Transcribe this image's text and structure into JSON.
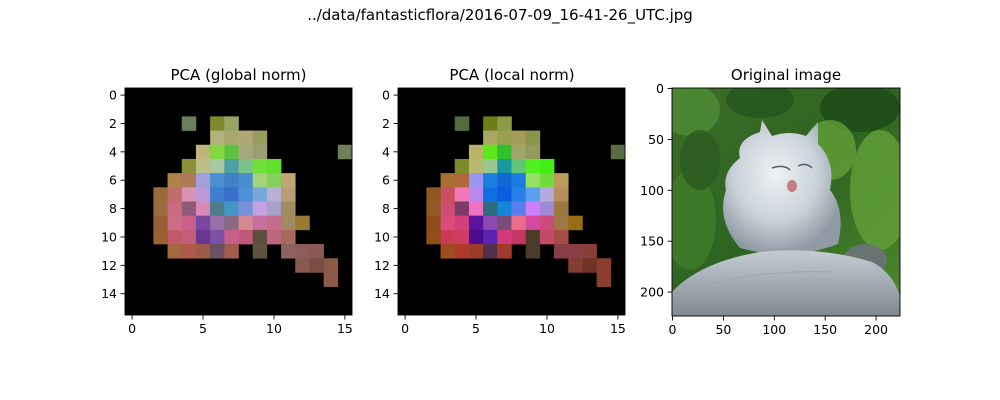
{
  "figure": {
    "suptitle": "../data/fantasticflora/2016-07-09_16-41-26_UTC.jpg"
  },
  "chart_data": [
    {
      "type": "heatmap",
      "title": "PCA (global norm)",
      "grid": false,
      "background": "#000000",
      "grid_size": [
        16,
        16
      ],
      "xlim": [
        -0.5,
        15.5
      ],
      "ylim": [
        15.5,
        -0.5
      ],
      "xticks": [
        0,
        5,
        10,
        15
      ],
      "yticks": [
        0,
        2,
        4,
        6,
        8,
        10,
        12,
        14
      ],
      "cells": [
        [
          2,
          4,
          "#6a7f5e"
        ],
        [
          2,
          6,
          "#7f8a2c"
        ],
        [
          2,
          7,
          "#9aa462"
        ],
        [
          3,
          6,
          "#b4b17a"
        ],
        [
          3,
          7,
          "#a6a86c"
        ],
        [
          3,
          8,
          "#b0a874"
        ],
        [
          3,
          9,
          "#999c60"
        ],
        [
          4,
          5,
          "#bfb57c"
        ],
        [
          4,
          6,
          "#82d93e"
        ],
        [
          4,
          7,
          "#5fc23f"
        ],
        [
          4,
          8,
          "#a5a87a"
        ],
        [
          4,
          9,
          "#9e9c73"
        ],
        [
          4,
          15,
          "#6f7f5a"
        ],
        [
          5,
          4,
          "#8c923a"
        ],
        [
          5,
          5,
          "#bdbd8a"
        ],
        [
          5,
          6,
          "#a8c8a0"
        ],
        [
          5,
          7,
          "#4aa0a2"
        ],
        [
          5,
          8,
          "#7cc08a"
        ],
        [
          5,
          9,
          "#6fe03a"
        ],
        [
          5,
          10,
          "#62de2f"
        ],
        [
          6,
          3,
          "#ad8148"
        ],
        [
          6,
          4,
          "#ae7a5a"
        ],
        [
          6,
          5,
          "#9fa0dc"
        ],
        [
          6,
          6,
          "#4a8fd2"
        ],
        [
          6,
          7,
          "#447fc6"
        ],
        [
          6,
          8,
          "#4a8cd0"
        ],
        [
          6,
          9,
          "#a3d47b"
        ],
        [
          6,
          10,
          "#86d05c"
        ],
        [
          6,
          11,
          "#c0a674"
        ],
        [
          7,
          2,
          "#9a6a3a"
        ],
        [
          7,
          3,
          "#c16b6f"
        ],
        [
          7,
          4,
          "#d792b4"
        ],
        [
          7,
          5,
          "#bb98d8"
        ],
        [
          7,
          6,
          "#3c7fcc"
        ],
        [
          7,
          7,
          "#3a6fcb"
        ],
        [
          7,
          8,
          "#4f8fd4"
        ],
        [
          7,
          9,
          "#77a8dc"
        ],
        [
          7,
          10,
          "#b7b2d2"
        ],
        [
          7,
          11,
          "#b99d76"
        ],
        [
          8,
          2,
          "#9c6b3e"
        ],
        [
          8,
          3,
          "#c96a7e"
        ],
        [
          8,
          4,
          "#8f5a78"
        ],
        [
          8,
          5,
          "#d88ab4"
        ],
        [
          8,
          6,
          "#4e7c8a"
        ],
        [
          8,
          7,
          "#4596c8"
        ],
        [
          8,
          8,
          "#7890d8"
        ],
        [
          8,
          9,
          "#c2a0e2"
        ],
        [
          8,
          10,
          "#a7a0cb"
        ],
        [
          8,
          11,
          "#a08d5e"
        ],
        [
          9,
          2,
          "#955e36"
        ],
        [
          9,
          3,
          "#cd6d84"
        ],
        [
          9,
          4,
          "#cb608a"
        ],
        [
          9,
          5,
          "#7848a0"
        ],
        [
          9,
          6,
          "#9a70a8"
        ],
        [
          9,
          7,
          "#8a6a82"
        ],
        [
          9,
          8,
          "#d48a92"
        ],
        [
          9,
          9,
          "#c870a2"
        ],
        [
          9,
          10,
          "#c26e8a"
        ],
        [
          9,
          11,
          "#a58962"
        ],
        [
          9,
          12,
          "#9a7a30"
        ],
        [
          10,
          2,
          "#9a6232"
        ],
        [
          10,
          3,
          "#c25a6c"
        ],
        [
          10,
          4,
          "#c2607a"
        ],
        [
          10,
          5,
          "#6a3890"
        ],
        [
          10,
          6,
          "#7a52a6"
        ],
        [
          10,
          7,
          "#c76088"
        ],
        [
          10,
          8,
          "#c05a7a"
        ],
        [
          10,
          9,
          "#5e4e40"
        ],
        [
          10,
          10,
          "#bd6680"
        ],
        [
          10,
          11,
          "#a66a5e"
        ],
        [
          11,
          3,
          "#a26840"
        ],
        [
          11,
          4,
          "#b05a4a"
        ],
        [
          11,
          5,
          "#a05a4a"
        ],
        [
          11,
          6,
          "#6a5060"
        ],
        [
          11,
          7,
          "#a25a4a"
        ],
        [
          11,
          9,
          "#5e5240"
        ],
        [
          11,
          11,
          "#8e6060"
        ],
        [
          11,
          12,
          "#8e5c5c"
        ],
        [
          11,
          13,
          "#8c5a55"
        ],
        [
          12,
          12,
          "#8a5a50"
        ],
        [
          12,
          13,
          "#7a4e40"
        ],
        [
          12,
          14,
          "#8e5a48"
        ],
        [
          13,
          14,
          "#8e5a48"
        ]
      ]
    },
    {
      "type": "heatmap",
      "title": "PCA (local norm)",
      "grid": false,
      "background": "#000000",
      "grid_size": [
        16,
        16
      ],
      "xlim": [
        -0.5,
        15.5
      ],
      "ylim": [
        15.5,
        -0.5
      ],
      "xticks": [
        0,
        5,
        10,
        15
      ],
      "yticks": [
        0,
        2,
        4,
        6,
        8,
        10,
        12,
        14
      ],
      "cells": [
        [
          2,
          4,
          "#556b40"
        ],
        [
          2,
          6,
          "#6e7d18"
        ],
        [
          2,
          7,
          "#8a9a48"
        ],
        [
          3,
          6,
          "#a8a860"
        ],
        [
          3,
          7,
          "#98a050"
        ],
        [
          3,
          8,
          "#a49a5a"
        ],
        [
          3,
          9,
          "#8c9648"
        ],
        [
          4,
          5,
          "#b8b468"
        ],
        [
          4,
          6,
          "#5ee81c"
        ],
        [
          4,
          7,
          "#32c02a"
        ],
        [
          4,
          8,
          "#a0a66a"
        ],
        [
          4,
          9,
          "#96985e"
        ],
        [
          4,
          15,
          "#5a6c44"
        ],
        [
          5,
          4,
          "#7c8a28"
        ],
        [
          5,
          5,
          "#b8b872"
        ],
        [
          5,
          6,
          "#98c890"
        ],
        [
          5,
          7,
          "#1a98a0"
        ],
        [
          5,
          8,
          "#62c476"
        ],
        [
          5,
          9,
          "#52f020"
        ],
        [
          5,
          10,
          "#42ee14"
        ],
        [
          6,
          3,
          "#a8702c"
        ],
        [
          6,
          4,
          "#b0683c"
        ],
        [
          6,
          5,
          "#9a96ee"
        ],
        [
          6,
          6,
          "#1a80e0"
        ],
        [
          6,
          7,
          "#1068d6"
        ],
        [
          6,
          8,
          "#1a7ce0"
        ],
        [
          6,
          9,
          "#98e064"
        ],
        [
          6,
          10,
          "#70dc3c"
        ],
        [
          6,
          11,
          "#bc9a58"
        ],
        [
          7,
          2,
          "#905820"
        ],
        [
          7,
          3,
          "#c85060"
        ],
        [
          7,
          4,
          "#f278b8"
        ],
        [
          7,
          5,
          "#b888ee"
        ],
        [
          7,
          6,
          "#1070e0"
        ],
        [
          7,
          7,
          "#0a5ce0"
        ],
        [
          7,
          8,
          "#2a80e6"
        ],
        [
          7,
          9,
          "#5aa0f0"
        ],
        [
          7,
          10,
          "#b4aae0"
        ],
        [
          7,
          11,
          "#b88e5c"
        ],
        [
          8,
          2,
          "#925a24"
        ],
        [
          8,
          3,
          "#d04e70"
        ],
        [
          8,
          4,
          "#7e3a68"
        ],
        [
          8,
          5,
          "#ee70c0"
        ],
        [
          8,
          6,
          "#2a6c80"
        ],
        [
          8,
          7,
          "#1488d8"
        ],
        [
          8,
          8,
          "#5a7ef0"
        ],
        [
          8,
          9,
          "#d080f6"
        ],
        [
          8,
          10,
          "#a088d8"
        ],
        [
          8,
          11,
          "#98783c"
        ],
        [
          9,
          2,
          "#8c4c1c"
        ],
        [
          9,
          3,
          "#d84e78"
        ],
        [
          9,
          4,
          "#d43e7a"
        ],
        [
          9,
          5,
          "#5a14a0"
        ],
        [
          9,
          6,
          "#8a4cb0"
        ],
        [
          9,
          7,
          "#7c4c78"
        ],
        [
          9,
          8,
          "#e86e8a"
        ],
        [
          9,
          9,
          "#d44a9e"
        ],
        [
          9,
          10,
          "#cc4a7c"
        ],
        [
          9,
          11,
          "#a07846"
        ],
        [
          9,
          12,
          "#9a6c14"
        ],
        [
          10,
          2,
          "#904e18"
        ],
        [
          10,
          3,
          "#cc3a56"
        ],
        [
          10,
          4,
          "#cc3e64"
        ],
        [
          10,
          5,
          "#4c0a90"
        ],
        [
          10,
          6,
          "#6022b0"
        ],
        [
          10,
          7,
          "#d23a78"
        ],
        [
          10,
          8,
          "#c63864"
        ],
        [
          10,
          9,
          "#4c3a2a"
        ],
        [
          10,
          10,
          "#c24a6a"
        ],
        [
          10,
          11,
          "#a44e44"
        ],
        [
          11,
          3,
          "#9e4e1e"
        ],
        [
          11,
          4,
          "#b03a2a"
        ],
        [
          11,
          5,
          "#9a3c2a"
        ],
        [
          11,
          6,
          "#543048"
        ],
        [
          11,
          7,
          "#a03a2a"
        ],
        [
          11,
          9,
          "#4a3c28"
        ],
        [
          11,
          11,
          "#883e48"
        ],
        [
          11,
          12,
          "#883e44"
        ],
        [
          11,
          13,
          "#8a3e3a"
        ],
        [
          12,
          12,
          "#843e34"
        ],
        [
          12,
          13,
          "#6e3424"
        ],
        [
          12,
          14,
          "#8a3e2e"
        ],
        [
          13,
          14,
          "#8a3e2e"
        ]
      ]
    },
    {
      "type": "image",
      "title": "Original image",
      "grid": false,
      "xlim": [
        -0.5,
        223.5
      ],
      "ylim": [
        223.5,
        -0.5
      ],
      "xticks": [
        0,
        50,
        100,
        150,
        200
      ],
      "yticks": [
        0,
        50,
        100,
        150,
        200
      ],
      "subject": "fluffy grey-white long-haired cat sitting on a rock in front of green shrubs",
      "colors": {
        "foliage_dark": "#24551e",
        "foliage_light": "#6aa83a",
        "fur": "#d6dde3",
        "fur_shadow": "#8c98a2",
        "rock": "#a8b4bc",
        "tongue": "#c77c88"
      }
    }
  ]
}
